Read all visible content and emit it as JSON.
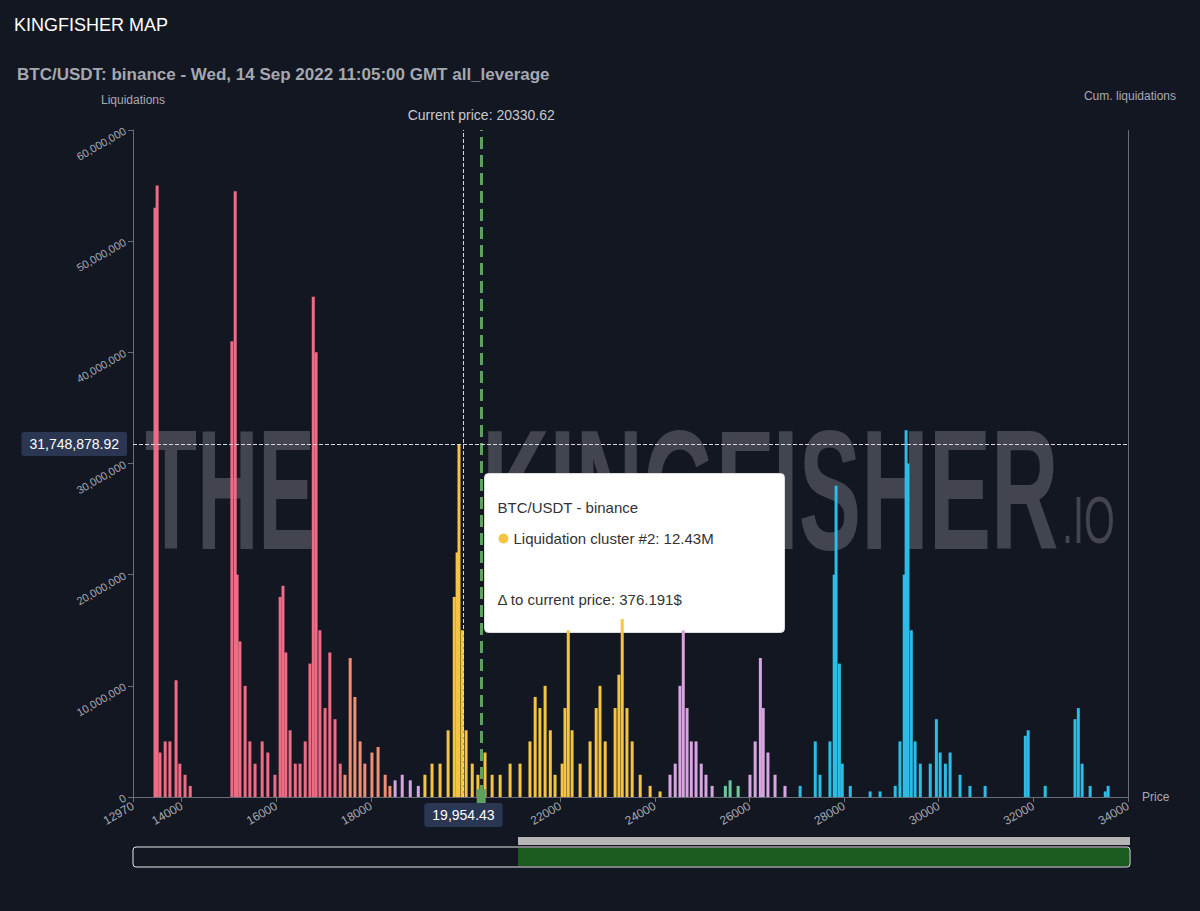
{
  "chart_data": {
    "type": "bar",
    "header": "KINGFISHER MAP",
    "title": "BTC/USDT: binance - Wed, 14 Sep 2022 11:05:00 GMT all_leverage",
    "y_label": "Liquidations",
    "y2_label": "Cum. liquidations",
    "x_label": "Price",
    "xlim": [
      12970,
      34000
    ],
    "xticks": [
      12970,
      14000,
      16000,
      18000,
      22000,
      24000,
      26000,
      28000,
      30000,
      32000,
      34000
    ],
    "ylim": [
      0,
      60000000
    ],
    "yticks": [
      {
        "value": 0,
        "label": "0"
      },
      {
        "value": 10000000,
        "label": "10,000,000"
      },
      {
        "value": 20000000,
        "label": "20,000,000"
      },
      {
        "value": 30000000,
        "label": "30,000,000"
      },
      {
        "value": 40000000,
        "label": "40,000,000"
      },
      {
        "value": 50000000,
        "label": "50,000,000"
      },
      {
        "value": 60000000,
        "label": "60,000,000"
      }
    ],
    "grid": false,
    "series": [
      {
        "color": "#f06b84",
        "x": [
          13435,
          13480,
          13540,
          13650,
          13750,
          13880,
          13960,
          14070,
          14180,
          15060,
          15130,
          15170,
          15230,
          15340,
          15440,
          15550,
          15700,
          15820,
          15970,
          16080,
          16140,
          16200,
          16290,
          16400,
          16500,
          16610,
          16710,
          16780,
          16840,
          16920,
          17030,
          17130,
          17240,
          17350
        ],
        "values": [
          53000000,
          55000000,
          4000000,
          5000000,
          5000000,
          10500000,
          3000000,
          2000000,
          1000000,
          41000000,
          54500000,
          20000000,
          14000000,
          10000000,
          5000000,
          3000000,
          5000000,
          4000000,
          2000000,
          18000000,
          19000000,
          13000000,
          6000000,
          3000000,
          3000000,
          5000000,
          12000000,
          45000000,
          40000000,
          15000000,
          8000000,
          13000000,
          7000000,
          3000000
        ]
      },
      {
        "color": "#f28e74",
        "x": [
          17450,
          17560,
          17660,
          17770,
          17870,
          18020,
          18150,
          18300,
          18400
        ],
        "values": [
          2000000,
          12500000,
          9000000,
          5000000,
          3000000,
          4000000,
          4500000,
          2000000,
          1000000
        ]
      },
      {
        "color": "#d7a6e2",
        "x": [
          18510,
          18660,
          18830,
          19000
        ],
        "values": [
          1500000,
          2000000,
          1500000,
          1000000
        ]
      },
      {
        "color": "#f5c542",
        "x": [
          19140,
          19290,
          19460,
          19630,
          19760,
          19820,
          19860,
          19930,
          20010,
          20140,
          20260,
          20410,
          20560,
          20730,
          20940,
          21150,
          21360,
          21470,
          21570,
          21680,
          21790,
          21890,
          22040,
          22100,
          22170,
          22250,
          22420,
          22630,
          22760,
          22840,
          22950,
          23160,
          23240,
          23310,
          23410,
          23520,
          23690,
          23900,
          24110
        ],
        "values": [
          2000000,
          3000000,
          3000000,
          6000000,
          18000000,
          22000000,
          31700000,
          15000000,
          6000000,
          3000000,
          2000000,
          4000000,
          2000000,
          2000000,
          3000000,
          3000000,
          5000000,
          9000000,
          8000000,
          10000000,
          6000000,
          2000000,
          3000000,
          8000000,
          15000000,
          6000000,
          3000000,
          5000000,
          8000000,
          10000000,
          5000000,
          8000000,
          11000000,
          16000000,
          8000000,
          5000000,
          2000000,
          1000000,
          500000
        ]
      },
      {
        "color": "#d7a6e2",
        "x": [
          24320,
          24430,
          24530,
          24600,
          24680,
          24770,
          24870,
          24980,
          25080,
          25210
        ],
        "values": [
          2000000,
          3000000,
          10000000,
          15000000,
          8000000,
          5000000,
          5000000,
          3000000,
          2000000,
          1000000
        ]
      },
      {
        "color": "#6ec89b",
        "x": [
          25490,
          25590,
          25760
        ],
        "values": [
          1000000,
          1500000,
          1000000
        ]
      },
      {
        "color": "#d7a6e2",
        "x": [
          26010,
          26120,
          26230,
          26290,
          26390,
          26540,
          26750
        ],
        "values": [
          2000000,
          5000000,
          12500000,
          8000000,
          4000000,
          2000000,
          1000000
        ]
      },
      {
        "color": "#2bbde6",
        "x": [
          27070,
          27390,
          27490,
          27700,
          27790,
          27830,
          27900,
          27960,
          28130,
          28550,
          28760,
          29080,
          29180,
          29270,
          29310,
          29350,
          29420,
          29500,
          29610,
          29820,
          29950,
          30030,
          30140,
          30240,
          30450,
          30660,
          30980,
          31830,
          31890,
          32250,
          32880,
          32950,
          33030,
          33200,
          33520,
          33580
        ],
        "values": [
          1000000,
          5000000,
          2000000,
          5000000,
          20000000,
          28000000,
          12000000,
          3000000,
          1000000,
          500000,
          500000,
          1000000,
          5000000,
          20000000,
          33000000,
          30000000,
          15000000,
          5000000,
          3000000,
          3000000,
          7000000,
          4000000,
          3000000,
          4000000,
          2000000,
          1000000,
          1000000,
          5500000,
          6000000,
          1000000,
          7000000,
          8000000,
          3000000,
          1000000,
          500000,
          1000000
        ]
      }
    ],
    "current_price": {
      "value": 20330.62,
      "label": "Current price: 20330.62"
    },
    "crosshair": {
      "x": 19954.43,
      "x_label": "19,954.43",
      "y": 31748878.92,
      "y_label": "31,748,878.92"
    },
    "tooltip": {
      "title": "BTC/USDT - binance",
      "cluster": "Liquidation cluster #2: 12.43M",
      "delta": "Δ to current price: 376.191$",
      "color": "#f5c542"
    },
    "watermark": [
      "THE",
      "KINGFISHER",
      ".IO"
    ]
  }
}
